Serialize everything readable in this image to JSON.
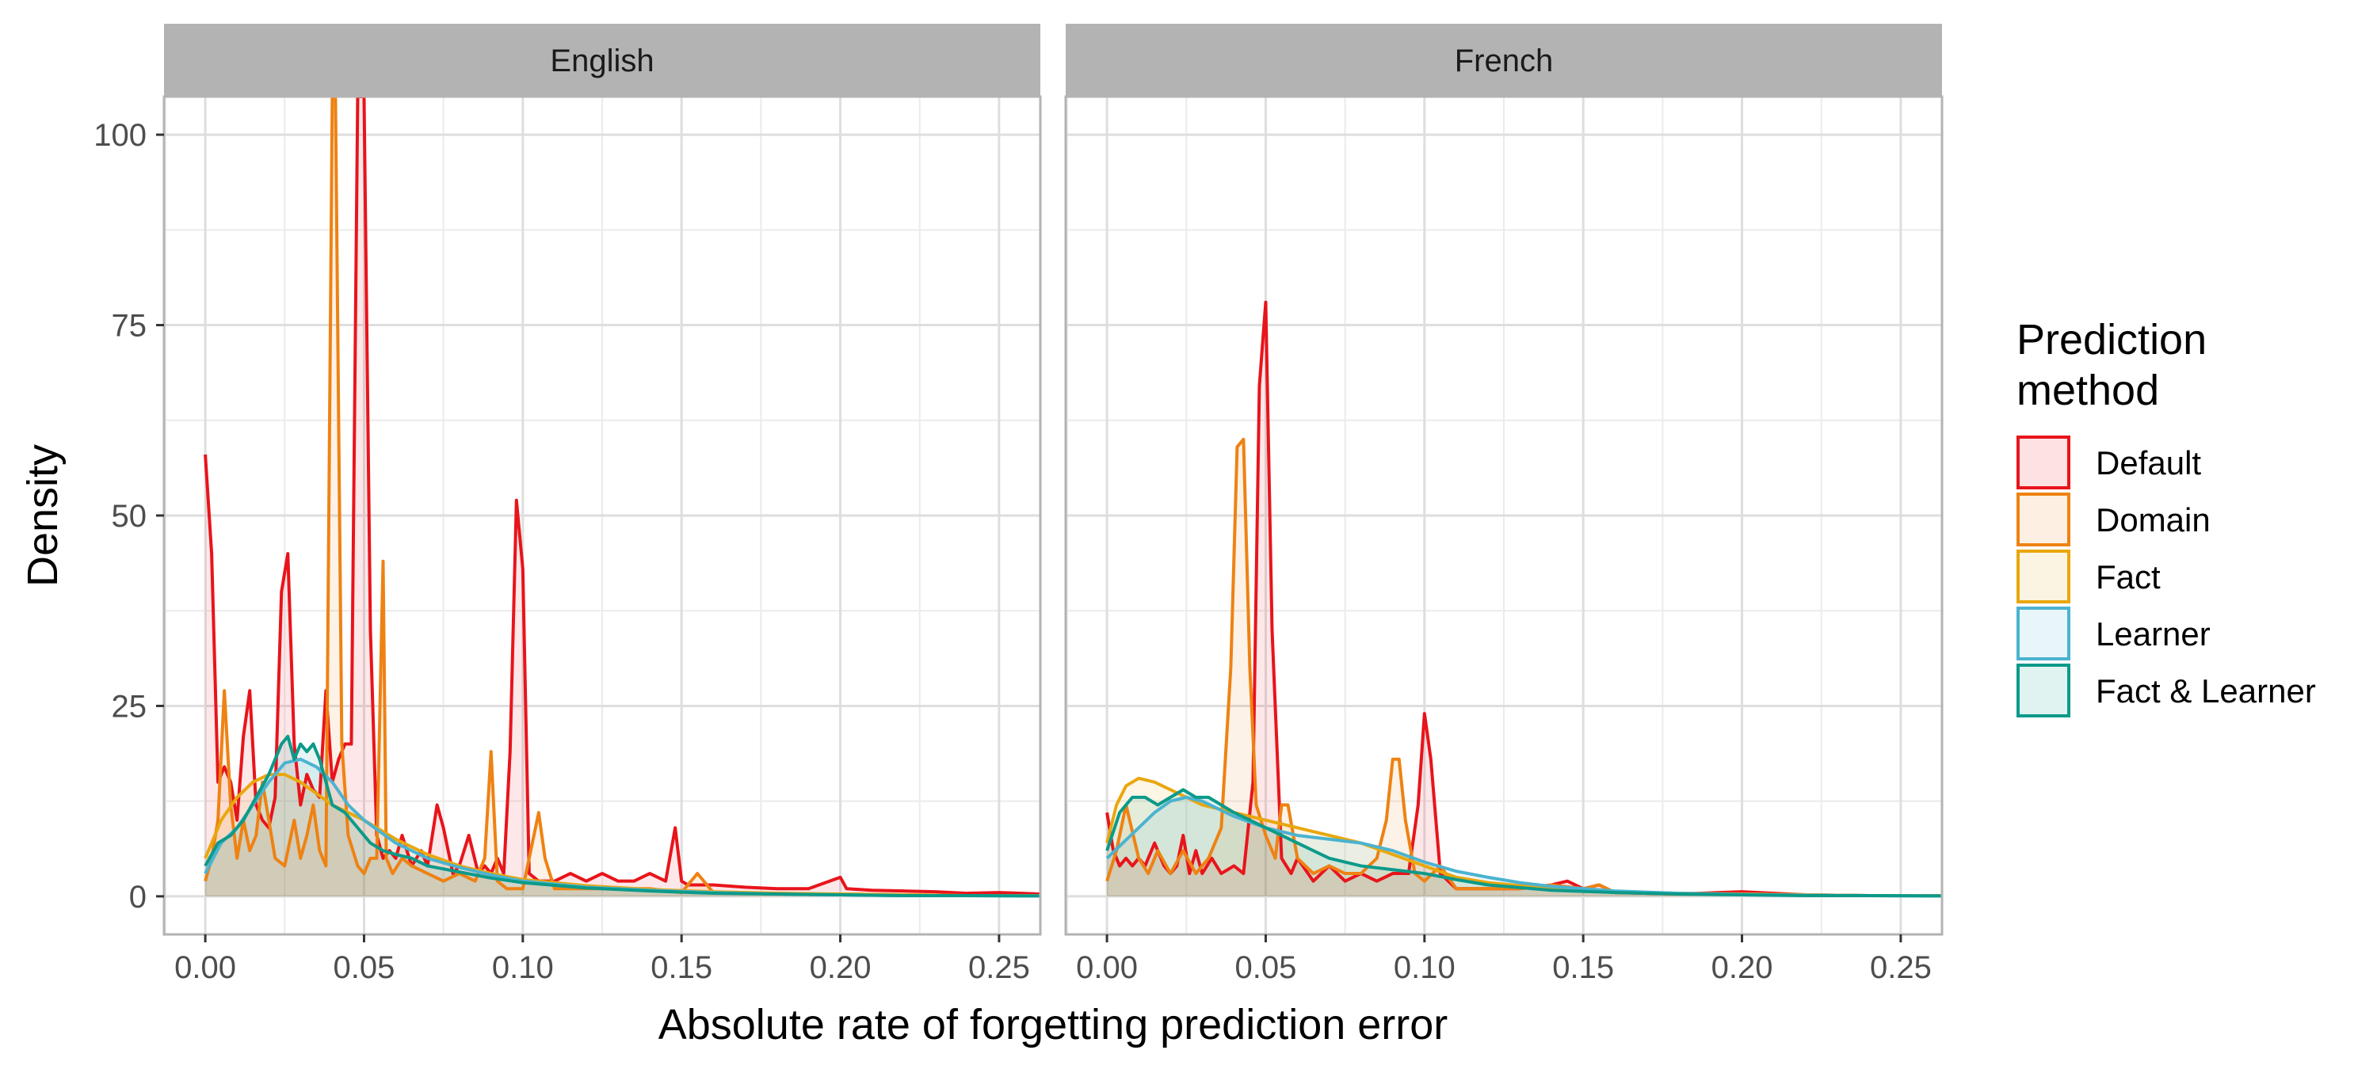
{
  "chart_data": {
    "type": "area",
    "xlabel": "Absolute rate of forgetting prediction error",
    "ylabel": "Density",
    "xlim": [
      -0.013,
      0.263
    ],
    "ylim": [
      -5,
      105
    ],
    "x_ticks": [
      0,
      0.05,
      0.1,
      0.15,
      0.2,
      0.25
    ],
    "x_tick_labels": [
      "0.00",
      "0.05",
      "0.10",
      "0.15",
      "0.20",
      "0.25"
    ],
    "y_ticks": [
      0,
      25,
      50,
      75,
      100
    ],
    "y_tick_labels": [
      "0",
      "25",
      "50",
      "75",
      "100"
    ],
    "grid": true,
    "legend": {
      "title_lines": [
        "Prediction",
        "method"
      ],
      "position": "right",
      "entries": [
        {
          "label": "Default",
          "color": "#E8141B",
          "fill": "#FCE2E4"
        },
        {
          "label": "Domain",
          "color": "#EE8213",
          "fill": "#FDF0E3"
        },
        {
          "label": "Fact",
          "color": "#E9A70E",
          "fill": "#FDF5E1"
        },
        {
          "label": "Learner",
          "color": "#4BB3D0",
          "fill": "#E9F5F8"
        },
        {
          "label": "Fact & Learner",
          "color": "#0C9A8A",
          "fill": "#E0F2EF"
        }
      ]
    },
    "panels": [
      {
        "title": "English",
        "series": [
          {
            "name": "Default",
            "x": [
              0,
              0.002,
              0.004,
              0.006,
              0.008,
              0.01,
              0.012,
              0.014,
              0.016,
              0.018,
              0.02,
              0.022,
              0.024,
              0.026,
              0.028,
              0.03,
              0.032,
              0.034,
              0.036,
              0.038,
              0.04,
              0.042,
              0.044,
              0.046,
              0.048,
              0.05,
              0.052,
              0.054,
              0.056,
              0.058,
              0.06,
              0.062,
              0.065,
              0.068,
              0.07,
              0.073,
              0.075,
              0.078,
              0.08,
              0.083,
              0.086,
              0.088,
              0.09,
              0.092,
              0.094,
              0.096,
              0.098,
              0.1,
              0.102,
              0.105,
              0.11,
              0.115,
              0.12,
              0.125,
              0.13,
              0.135,
              0.14,
              0.145,
              0.148,
              0.15,
              0.152,
              0.155,
              0.16,
              0.17,
              0.18,
              0.19,
              0.2,
              0.202,
              0.21,
              0.22,
              0.23,
              0.24,
              0.25,
              0.263
            ],
            "y": [
              58,
              45,
              15,
              17,
              15,
              10,
              21,
              27,
              12,
              10,
              9,
              13,
              40,
              45,
              20,
              12,
              16,
              14,
              13,
              27,
              15,
              18,
              20,
              20,
              105,
              105,
              35,
              8,
              5,
              6,
              5,
              8,
              4,
              6,
              4,
              12,
              9,
              3,
              4,
              8,
              3,
              4,
              3,
              5,
              3,
              19,
              52,
              43,
              3,
              2,
              2,
              3,
              2,
              3,
              2,
              2,
              3,
              2,
              9,
              2,
              1.5,
              1.5,
              1.5,
              1.2,
              1,
              1,
              2.5,
              1,
              0.8,
              0.7,
              0.6,
              0.4,
              0.5,
              0.3
            ]
          },
          {
            "name": "Domain",
            "x": [
              0,
              0.002,
              0.004,
              0.006,
              0.008,
              0.01,
              0.012,
              0.014,
              0.016,
              0.018,
              0.02,
              0.022,
              0.025,
              0.028,
              0.03,
              0.032,
              0.034,
              0.036,
              0.038,
              0.04,
              0.041,
              0.043,
              0.045,
              0.048,
              0.05,
              0.052,
              0.054,
              0.056,
              0.057,
              0.059,
              0.062,
              0.065,
              0.07,
              0.075,
              0.08,
              0.085,
              0.088,
              0.09,
              0.092,
              0.095,
              0.1,
              0.105,
              0.107,
              0.11,
              0.12,
              0.13,
              0.14,
              0.15,
              0.155,
              0.16,
              0.18,
              0.2,
              0.22,
              0.24,
              0.263
            ],
            "y": [
              2,
              5,
              10,
              27,
              12,
              5,
              10,
              6,
              8,
              15,
              10,
              5,
              4,
              10,
              5,
              8,
              12,
              6,
              4,
              105,
              105,
              20,
              8,
              4,
              3,
              5,
              5,
              44,
              5,
              3,
              5,
              4,
              3,
              2,
              3,
              2,
              5,
              19,
              2,
              1,
              1,
              11,
              5,
              1,
              1,
              1,
              1,
              0.5,
              3,
              0.5,
              0.3,
              0.3,
              0.2,
              0.1,
              0.1
            ]
          },
          {
            "name": "Fact",
            "x": [
              0,
              0.005,
              0.01,
              0.015,
              0.02,
              0.025,
              0.03,
              0.035,
              0.04,
              0.045,
              0.05,
              0.06,
              0.07,
              0.08,
              0.09,
              0.1,
              0.12,
              0.14,
              0.16,
              0.18,
              0.2,
              0.22,
              0.24,
              0.263
            ],
            "y": [
              5,
              10,
              13,
              15,
              16,
              16,
              15,
              13.5,
              12,
              11,
              10,
              7.5,
              5.5,
              4,
              3,
              2.2,
              1.4,
              0.9,
              0.6,
              0.4,
              0.3,
              0.2,
              0.1,
              0.1
            ]
          },
          {
            "name": "Learner",
            "x": [
              0,
              0.005,
              0.01,
              0.015,
              0.02,
              0.025,
              0.03,
              0.035,
              0.04,
              0.045,
              0.05,
              0.06,
              0.07,
              0.08,
              0.09,
              0.1,
              0.12,
              0.14,
              0.16,
              0.18,
              0.2,
              0.22,
              0.24,
              0.263
            ],
            "y": [
              3,
              7,
              9,
              12,
              15,
              17.5,
              18,
              17,
              15,
              12,
              10,
              7,
              5,
              3.8,
              2.8,
              2,
              1.2,
              0.8,
              0.5,
              0.3,
              0.2,
              0.1,
              0.1,
              0.05
            ]
          },
          {
            "name": "Fact & Learner",
            "x": [
              0,
              0.004,
              0.008,
              0.012,
              0.016,
              0.02,
              0.024,
              0.026,
              0.028,
              0.03,
              0.032,
              0.034,
              0.036,
              0.038,
              0.04,
              0.044,
              0.048,
              0.052,
              0.056,
              0.06,
              0.065,
              0.07,
              0.08,
              0.09,
              0.1,
              0.12,
              0.14,
              0.16,
              0.18,
              0.2,
              0.22,
              0.24,
              0.263
            ],
            "y": [
              4,
              7,
              8,
              10,
              13,
              16,
              20,
              21,
              18,
              20,
              19,
              20,
              18,
              15,
              12,
              11,
              9,
              7,
              6,
              5.5,
              5,
              4,
              3.2,
              2.4,
              1.8,
              1.1,
              0.7,
              0.4,
              0.3,
              0.2,
              0.1,
              0.1,
              0.05
            ]
          }
        ]
      },
      {
        "title": "French",
        "series": [
          {
            "name": "Default",
            "x": [
              0,
              0.002,
              0.004,
              0.006,
              0.008,
              0.01,
              0.012,
              0.015,
              0.018,
              0.02,
              0.022,
              0.024,
              0.026,
              0.028,
              0.03,
              0.033,
              0.036,
              0.04,
              0.043,
              0.046,
              0.048,
              0.05,
              0.052,
              0.055,
              0.058,
              0.06,
              0.065,
              0.07,
              0.075,
              0.08,
              0.085,
              0.09,
              0.095,
              0.098,
              0.1,
              0.102,
              0.105,
              0.11,
              0.12,
              0.13,
              0.14,
              0.145,
              0.15,
              0.155,
              0.16,
              0.18,
              0.2,
              0.22,
              0.24,
              0.263
            ],
            "y": [
              11,
              6,
              4,
              5,
              4,
              5,
              4,
              7,
              4,
              3,
              4,
              8,
              3,
              6,
              3,
              5,
              3,
              4,
              3,
              15,
              67,
              78,
              35,
              5,
              3,
              5,
              2,
              4,
              2,
              3,
              2,
              3,
              3,
              12,
              24,
              18,
              3,
              1,
              1,
              1,
              1.5,
              2,
              1,
              1.5,
              0.5,
              0.3,
              0.6,
              0.2,
              0.1,
              0.1
            ]
          },
          {
            "name": "Domain",
            "x": [
              0,
              0.003,
              0.006,
              0.01,
              0.013,
              0.016,
              0.02,
              0.024,
              0.028,
              0.032,
              0.036,
              0.039,
              0.041,
              0.043,
              0.045,
              0.047,
              0.05,
              0.053,
              0.055,
              0.057,
              0.06,
              0.065,
              0.07,
              0.075,
              0.08,
              0.085,
              0.088,
              0.09,
              0.092,
              0.094,
              0.097,
              0.1,
              0.105,
              0.11,
              0.12,
              0.13,
              0.14,
              0.15,
              0.155,
              0.16,
              0.18,
              0.2,
              0.22,
              0.24,
              0.263
            ],
            "y": [
              2,
              6,
              12,
              5,
              3,
              6,
              3,
              6,
              3,
              5,
              9,
              30,
              59,
              60,
              30,
              12,
              8,
              5,
              12,
              12,
              5,
              3,
              4,
              3,
              3,
              5,
              10,
              18,
              18,
              10,
              3,
              2,
              4,
              1,
              1,
              1,
              1.5,
              1,
              1.5,
              0.5,
              0.3,
              0.3,
              0.2,
              0.1,
              0.1
            ]
          },
          {
            "name": "Fact",
            "x": [
              0,
              0.003,
              0.006,
              0.01,
              0.015,
              0.02,
              0.025,
              0.03,
              0.035,
              0.04,
              0.05,
              0.06,
              0.07,
              0.08,
              0.09,
              0.1,
              0.11,
              0.12,
              0.14,
              0.16,
              0.18,
              0.2,
              0.22,
              0.24,
              0.263
            ],
            "y": [
              7,
              12,
              14.5,
              15.5,
              15,
              14,
              13,
              12,
              11.5,
              11,
              10,
              9,
              8,
              7,
              5.5,
              4,
              2.5,
              1.8,
              1,
              0.6,
              0.4,
              0.3,
              0.2,
              0.1,
              0.1
            ]
          },
          {
            "name": "Learner",
            "x": [
              0,
              0.005,
              0.01,
              0.015,
              0.02,
              0.025,
              0.03,
              0.035,
              0.04,
              0.05,
              0.06,
              0.07,
              0.08,
              0.09,
              0.1,
              0.11,
              0.12,
              0.13,
              0.14,
              0.16,
              0.18,
              0.2,
              0.22,
              0.24,
              0.263
            ],
            "y": [
              5,
              7,
              9,
              11,
              12.5,
              13,
              12.5,
              11.5,
              10.5,
              9,
              8,
              7.5,
              7,
              6,
              4.5,
              3.3,
              2.5,
              1.8,
              1.3,
              0.7,
              0.4,
              0.25,
              0.15,
              0.1,
              0.05
            ]
          },
          {
            "name": "Fact & Learner",
            "x": [
              0,
              0.004,
              0.008,
              0.012,
              0.016,
              0.02,
              0.024,
              0.028,
              0.032,
              0.036,
              0.04,
              0.045,
              0.05,
              0.055,
              0.06,
              0.07,
              0.08,
              0.09,
              0.1,
              0.11,
              0.12,
              0.14,
              0.16,
              0.18,
              0.2,
              0.22,
              0.24,
              0.263
            ],
            "y": [
              6,
              11,
              13,
              13,
              12,
              13,
              14,
              13,
              13,
              12,
              11,
              10,
              9,
              8,
              7,
              5,
              4,
              3.5,
              3,
              2.2,
              1.5,
              0.8,
              0.5,
              0.3,
              0.2,
              0.1,
              0.1,
              0.05
            ]
          }
        ]
      }
    ]
  }
}
